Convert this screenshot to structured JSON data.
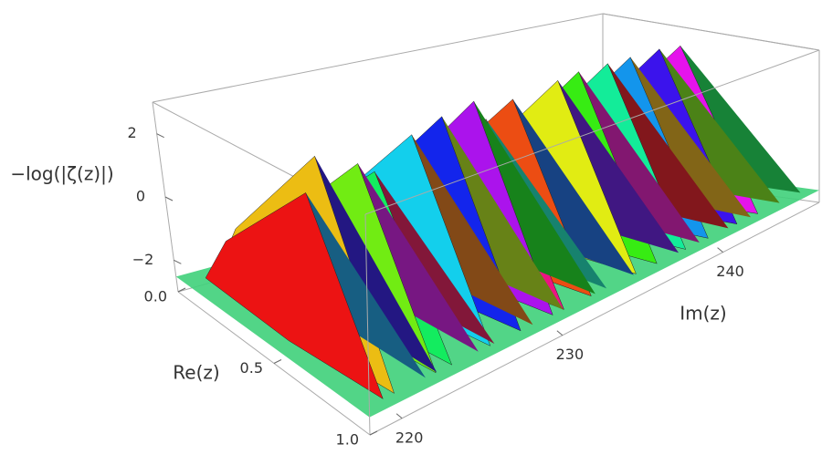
{
  "chart_data": {
    "type": "surface3d",
    "z_label": "−log(|ζ(z)|)",
    "x_label": "Re(z)",
    "y_label": "Im(z)",
    "xlim": [
      0,
      1
    ],
    "xticks": [
      {
        "value": 0,
        "label": "0.0"
      },
      {
        "value": 0.5,
        "label": "0.5"
      },
      {
        "value": 1,
        "label": "1.0"
      }
    ],
    "ylim": [
      218,
      246
    ],
    "yticks": [
      220,
      230,
      240
    ],
    "zlim": [
      -3,
      3
    ],
    "zticks": [
      {
        "value": -2,
        "label": "−2"
      },
      0,
      2
    ],
    "peaks": {
      "x": [
        220.7,
        221.4,
        224.0,
        225.0,
        227.4,
        229.3,
        231.3,
        232.0,
        233.7,
        236.5,
        237.8,
        239.6,
        241.0,
        242.8,
        244.1
      ],
      "values": [
        1.6,
        2.6,
        2.0,
        1.6,
        2.4,
        2.7,
        2.9,
        2.2,
        2.6,
        2.8,
        2.9,
        2.9,
        2.9,
        2.9,
        2.8
      ]
    }
  }
}
